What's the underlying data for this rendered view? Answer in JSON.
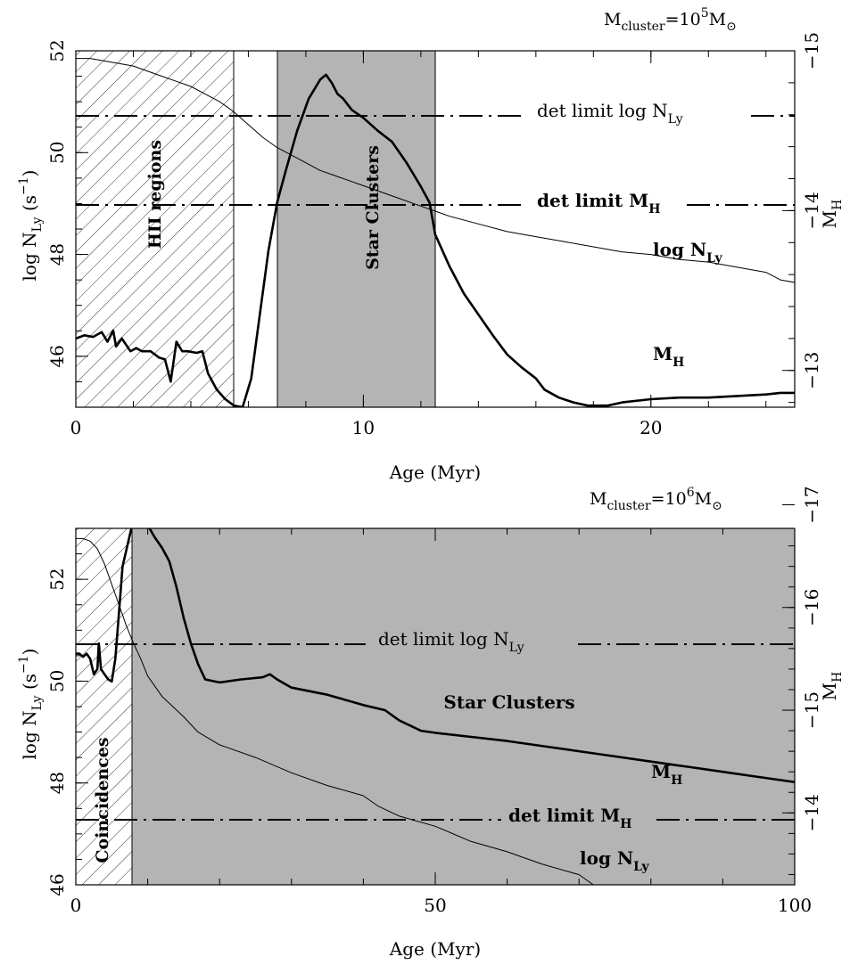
{
  "chart_data": [
    {
      "type": "line",
      "mass_label": {
        "base": "M",
        "sub": "cluster",
        "eq": "=10",
        "exp": "5",
        "unit": "M",
        "unit_sub": "⊙"
      },
      "xlabel": "Age (Myr)",
      "ylabel": {
        "pre": "log N",
        "sub": "Ly",
        "mid": " (s",
        "sup": "−1",
        "post": ")"
      },
      "y2label": {
        "base": "M",
        "sub": "H"
      },
      "xlim": [
        0,
        25
      ],
      "ylim": [
        45,
        52
      ],
      "y2lim": [
        -12.77,
        -15
      ],
      "xticks": [
        0,
        10,
        20
      ],
      "yticks": [
        46,
        48,
        50,
        52
      ],
      "y2ticks": [
        -13,
        -14,
        -15
      ],
      "x_tick_labels": [
        "0",
        "10",
        "20"
      ],
      "y_tick_labels": [
        "46",
        "48",
        "50",
        "52"
      ],
      "y2_tick_labels": [
        "−13",
        "−14",
        "−15"
      ],
      "hatched_region": {
        "x": [
          0,
          5.5
        ],
        "label": "HII regions"
      },
      "shaded_region": {
        "x": [
          7,
          12.5
        ],
        "label": "Star Clusters"
      },
      "hlines": [
        {
          "y": 50.7,
          "label_pre": "det limit log N",
          "label_sub": "Ly",
          "bold": false
        },
        {
          "y": 49.0,
          "label_pre": "det limit M",
          "label_sub": "H",
          "bold": true
        }
      ],
      "series": [
        {
          "name_pre": "log N",
          "name_sub": "Ly",
          "axis": "left",
          "width": 1,
          "x": [
            0,
            0.5,
            1,
            1.5,
            2,
            2.5,
            3,
            3.5,
            4,
            4.5,
            5,
            5.5,
            6,
            6.5,
            7,
            7.5,
            8,
            8.5,
            9,
            9.5,
            10,
            11,
            12,
            12.5,
            13,
            14,
            15,
            16,
            17,
            18,
            19,
            20,
            21,
            22,
            23,
            24,
            24.5,
            25
          ],
          "y": [
            51.85,
            51.85,
            51.8,
            51.75,
            51.7,
            51.6,
            51.5,
            51.4,
            51.3,
            51.15,
            51.0,
            50.8,
            50.55,
            50.3,
            50.1,
            49.95,
            49.8,
            49.65,
            49.55,
            49.45,
            49.35,
            49.15,
            48.95,
            48.85,
            48.75,
            48.6,
            48.45,
            48.35,
            48.25,
            48.15,
            48.05,
            48.0,
            47.9,
            47.85,
            47.75,
            47.65,
            47.5,
            47.45
          ]
        },
        {
          "name_pre": "M",
          "name_sub": "H",
          "axis": "right",
          "width": 2.6,
          "x": [
            0,
            0.3,
            0.6,
            0.9,
            1.1,
            1.3,
            1.4,
            1.6,
            1.9,
            2.1,
            2.3,
            2.6,
            2.9,
            3.1,
            3.3,
            3.5,
            3.7,
            3.9,
            4.2,
            4.4,
            4.6,
            4.9,
            5.2,
            5.5,
            5.8,
            6.1,
            6.4,
            6.7,
            7.0,
            7.3,
            7.7,
            8.1,
            8.5,
            8.7,
            8.9,
            9.1,
            9.3,
            9.6,
            10.0,
            10.5,
            11.0,
            11.5,
            12.0,
            12.3,
            12.5,
            13.0,
            13.5,
            14.0,
            14.5,
            15.0,
            15.5,
            16.0,
            16.3,
            16.8,
            17.3,
            17.8,
            18.5,
            19.0,
            20.0,
            21.0,
            22.0,
            23.0,
            24.0,
            24.5,
            25.0
          ],
          "y": [
            -13.2,
            -13.22,
            -13.21,
            -13.24,
            -13.18,
            -13.25,
            -13.15,
            -13.2,
            -13.12,
            -13.14,
            -13.12,
            -13.12,
            -13.08,
            -13.07,
            -12.93,
            -13.18,
            -13.12,
            -13.12,
            -13.11,
            -13.12,
            -12.98,
            -12.88,
            -12.82,
            -12.78,
            -12.77,
            -12.95,
            -13.35,
            -13.75,
            -14.05,
            -14.25,
            -14.5,
            -14.7,
            -14.82,
            -14.85,
            -14.8,
            -14.73,
            -14.7,
            -14.63,
            -14.58,
            -14.5,
            -14.43,
            -14.3,
            -14.15,
            -14.05,
            -13.85,
            -13.65,
            -13.48,
            -13.35,
            -13.22,
            -13.1,
            -13.02,
            -12.95,
            -12.88,
            -12.83,
            -12.8,
            -12.78,
            -12.78,
            -12.8,
            -12.82,
            -12.83,
            -12.83,
            -12.84,
            -12.85,
            -12.86,
            -12.86
          ]
        }
      ]
    },
    {
      "type": "line",
      "mass_label": {
        "base": "M",
        "sub": "cluster",
        "eq": "=10",
        "exp": "6",
        "unit": "M",
        "unit_sub": "⊙"
      },
      "xlabel": "Age (Myr)",
      "ylabel": {
        "pre": "log N",
        "sub": "Ly",
        "mid": " (s",
        "sup": "−1",
        "post": ")"
      },
      "y2label": {
        "base": "M",
        "sub": "H"
      },
      "xlim": [
        0,
        100
      ],
      "ylim": [
        46,
        53
      ],
      "y2lim": [
        -13.3,
        -16.77
      ],
      "xticks": [
        0,
        50,
        100
      ],
      "yticks": [
        46,
        48,
        50,
        52
      ],
      "y2ticks": [
        -14,
        -15,
        -16,
        -17
      ],
      "x_tick_labels": [
        "0",
        "50",
        "100"
      ],
      "y_tick_labels": [
        "46",
        "48",
        "50",
        "52"
      ],
      "y2_tick_labels": [
        "−14",
        "−15",
        "−16",
        "−17"
      ],
      "hatched_region": {
        "x": [
          0,
          7.8
        ],
        "label": "Coincidences"
      },
      "shaded_region": {
        "x": [
          7.8,
          100
        ],
        "label": "Star Clusters"
      },
      "hlines": [
        {
          "y": 50.75,
          "label_pre": "det limit log N",
          "label_sub": "Ly",
          "bold": false
        },
        {
          "y": 47.3,
          "label_pre": "det limit M",
          "label_sub": "H",
          "bold": true
        }
      ],
      "series": [
        {
          "name_pre": "log N",
          "name_sub": "Ly",
          "axis": "left",
          "width": 1,
          "x": [
            0,
            1,
            2,
            3,
            4,
            5,
            6,
            7,
            8,
            9,
            10,
            12,
            15,
            17,
            20,
            25,
            30,
            35,
            40,
            42,
            45,
            50,
            55,
            60,
            62,
            65,
            70,
            72,
            80,
            90,
            100
          ],
          "y": [
            52.8,
            52.8,
            52.75,
            52.6,
            52.3,
            51.9,
            51.5,
            51.1,
            50.75,
            50.45,
            50.1,
            49.7,
            49.3,
            49.0,
            48.75,
            48.5,
            48.2,
            47.95,
            47.75,
            47.55,
            47.35,
            47.15,
            46.85,
            46.65,
            46.55,
            46.4,
            46.2,
            46.0,
            46.0,
            46.0,
            46.0
          ]
        },
        {
          "name_pre": "M",
          "name_sub": "H",
          "axis": "right",
          "width": 2.6,
          "x": [
            0,
            0.5,
            1,
            1.5,
            2,
            2.5,
            3,
            3.2,
            3.5,
            4,
            4.5,
            5,
            5.5,
            6,
            6.5,
            7,
            7.5,
            8,
            8.5,
            9,
            10,
            11,
            12,
            13,
            14,
            15,
            16,
            17,
            18,
            20,
            23,
            26,
            27,
            28,
            30,
            35,
            40,
            43,
            45,
            48,
            50,
            55,
            60,
            65,
            70,
            75,
            80,
            85,
            90,
            95,
            100
          ],
          "y": [
            -15.55,
            -15.55,
            -15.52,
            -15.55,
            -15.5,
            -15.35,
            -15.4,
            -15.65,
            -15.4,
            -15.35,
            -15.3,
            -15.28,
            -15.5,
            -15.95,
            -16.4,
            -16.55,
            -16.7,
            -16.85,
            -16.95,
            -16.88,
            -16.8,
            -16.68,
            -16.58,
            -16.45,
            -16.2,
            -15.9,
            -15.65,
            -15.45,
            -15.3,
            -15.27,
            -15.3,
            -15.32,
            -15.35,
            -15.3,
            -15.22,
            -15.15,
            -15.05,
            -15.0,
            -14.9,
            -14.8,
            -14.78,
            -14.74,
            -14.7,
            -14.65,
            -14.6,
            -14.55,
            -14.5,
            -14.45,
            -14.4,
            -14.35,
            -14.3
          ]
        }
      ]
    }
  ]
}
